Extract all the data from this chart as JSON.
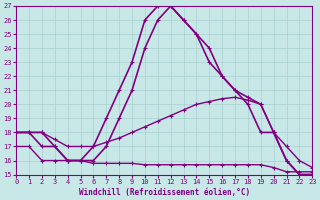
{
  "xlabel": "Windchill (Refroidissement éolien,°C)",
  "background_color": "#c8e8e8",
  "grid_color": "#a8d0d0",
  "line_color": "#800080",
  "xlim": [
    0,
    23
  ],
  "ylim": [
    15,
    27
  ],
  "yticks": [
    15,
    16,
    17,
    18,
    19,
    20,
    21,
    22,
    23,
    24,
    25,
    26,
    27
  ],
  "xticks": [
    0,
    1,
    2,
    3,
    4,
    5,
    6,
    7,
    8,
    9,
    10,
    11,
    12,
    13,
    14,
    15,
    16,
    17,
    18,
    19,
    20,
    21,
    22,
    23
  ],
  "series": [
    {
      "x": [
        0,
        1,
        2,
        3,
        4,
        5,
        6,
        7,
        8,
        9,
        10,
        11,
        12,
        13,
        14,
        15,
        16,
        17,
        18,
        19,
        20,
        21,
        22,
        23
      ],
      "y": [
        18,
        18,
        18,
        17,
        16,
        16,
        17,
        19,
        21,
        23,
        26,
        27,
        27,
        26,
        25,
        24,
        22,
        21,
        20.5,
        20,
        18,
        16,
        15,
        15
      ],
      "marker": true,
      "markersize": 3.5,
      "linewidth": 1.2
    },
    {
      "x": [
        0,
        1,
        2,
        3,
        4,
        5,
        6,
        7,
        8,
        9,
        10,
        11,
        12,
        13,
        14,
        15,
        16,
        17,
        18,
        19,
        20,
        21,
        22,
        23
      ],
      "y": [
        18,
        18,
        17,
        17,
        16,
        16,
        16,
        17,
        19,
        21,
        24,
        26,
        27,
        26,
        25,
        23,
        22,
        21,
        20,
        18,
        18,
        16,
        15,
        15
      ],
      "marker": true,
      "markersize": 3.5,
      "linewidth": 1.2
    },
    {
      "x": [
        0,
        1,
        2,
        3,
        4,
        5,
        6,
        7,
        8,
        9,
        10,
        11,
        12,
        13,
        14,
        15,
        16,
        17,
        18,
        19,
        20,
        21,
        22,
        23
      ],
      "y": [
        18,
        18,
        18,
        17.5,
        17,
        17,
        17,
        17.3,
        17.6,
        18,
        18.4,
        18.8,
        19.2,
        19.6,
        20,
        20.2,
        20.4,
        20.5,
        20.3,
        20,
        18,
        17,
        16,
        15.5
      ],
      "marker": true,
      "markersize": 3.5,
      "linewidth": 1.0
    },
    {
      "x": [
        0,
        1,
        2,
        3,
        4,
        5,
        6,
        7,
        8,
        9,
        10,
        11,
        12,
        13,
        14,
        15,
        16,
        17,
        18,
        19,
        20,
        21,
        22,
        23
      ],
      "y": [
        17,
        17,
        16,
        16,
        16,
        16,
        15.8,
        15.8,
        15.8,
        15.8,
        15.7,
        15.7,
        15.7,
        15.7,
        15.7,
        15.7,
        15.7,
        15.7,
        15.7,
        15.7,
        15.5,
        15.2,
        15.2,
        15.2
      ],
      "marker": true,
      "markersize": 3.5,
      "linewidth": 1.0
    }
  ]
}
